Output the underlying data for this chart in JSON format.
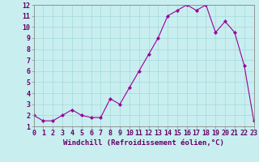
{
  "x": [
    0,
    1,
    2,
    3,
    4,
    5,
    6,
    7,
    8,
    9,
    10,
    11,
    12,
    13,
    14,
    15,
    16,
    17,
    18,
    19,
    20,
    21,
    22,
    23
  ],
  "y": [
    2.0,
    1.5,
    1.5,
    2.0,
    2.5,
    2.0,
    1.8,
    1.8,
    3.5,
    3.0,
    4.5,
    6.0,
    7.5,
    9.0,
    11.0,
    11.5,
    12.0,
    11.5,
    12.0,
    9.5,
    10.5,
    9.5,
    6.5,
    1.5
  ],
  "line_color": "#990099",
  "marker": "D",
  "marker_size": 2,
  "background_color": "#c8eef0",
  "grid_color": "#aadddd",
  "xlabel": "Windchill (Refroidissement éolien,°C)",
  "ylim": [
    1,
    12
  ],
  "xlim": [
    0,
    23
  ],
  "yticks": [
    1,
    2,
    3,
    4,
    5,
    6,
    7,
    8,
    9,
    10,
    11,
    12
  ],
  "xticks": [
    0,
    1,
    2,
    3,
    4,
    5,
    6,
    7,
    8,
    9,
    10,
    11,
    12,
    13,
    14,
    15,
    16,
    17,
    18,
    19,
    20,
    21,
    22,
    23
  ],
  "tick_label_fontsize": 6,
  "xlabel_fontsize": 6.5,
  "line_color_hex": "#880088",
  "tick_color": "#660066",
  "spine_color": "#888888"
}
